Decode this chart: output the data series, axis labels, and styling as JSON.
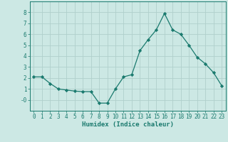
{
  "x": [
    0,
    1,
    2,
    3,
    4,
    5,
    6,
    7,
    8,
    9,
    10,
    11,
    12,
    13,
    14,
    15,
    16,
    17,
    18,
    19,
    20,
    21,
    22,
    23
  ],
  "y": [
    2.1,
    2.1,
    1.5,
    1.0,
    0.9,
    0.8,
    0.75,
    0.75,
    -0.3,
    -0.3,
    1.0,
    2.1,
    2.3,
    4.5,
    5.5,
    6.4,
    7.9,
    6.4,
    6.0,
    5.0,
    3.9,
    3.3,
    2.5,
    1.3
  ],
  "line_color": "#1a7a6e",
  "marker": "D",
  "marker_size": 2.2,
  "bg_color": "#cce8e4",
  "grid_color": "#b0d0cc",
  "axis_color": "#1a7a6e",
  "text_color": "#1a7a6e",
  "xlabel": "Humidex (Indice chaleur)",
  "xlim": [
    -0.5,
    23.5
  ],
  "ylim": [
    -1.0,
    9.0
  ],
  "yticks": [
    0,
    1,
    2,
    3,
    4,
    5,
    6,
    7,
    8
  ],
  "ytick_labels": [
    "-0",
    "1",
    "2",
    "3",
    "4",
    "5",
    "6",
    "7",
    "8"
  ],
  "xticks": [
    0,
    1,
    2,
    3,
    4,
    5,
    6,
    7,
    8,
    9,
    10,
    11,
    12,
    13,
    14,
    15,
    16,
    17,
    18,
    19,
    20,
    21,
    22,
    23
  ],
  "label_fontsize": 6.5,
  "tick_fontsize": 5.5
}
